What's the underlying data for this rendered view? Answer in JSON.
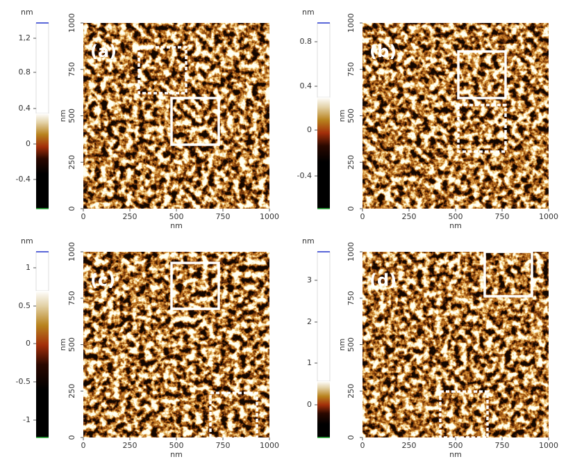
{
  "panels": [
    {
      "label": "(a)",
      "colorbar": {
        "unit": "nm",
        "ticks": [
          "1,2",
          "0.8",
          "0.4",
          "0",
          "-0.4"
        ]
      },
      "x_axis": {
        "label": "nm",
        "ticks": [
          "0",
          "250",
          "500",
          "750",
          "1000"
        ]
      },
      "y_axis": {
        "label": "nm",
        "ticks": [
          "0",
          "250",
          "500",
          "750",
          "1000"
        ]
      }
    },
    {
      "label": "(b)",
      "colorbar": {
        "unit": "nm",
        "ticks": [
          "0.8",
          "0.4",
          "0",
          "-0.4"
        ]
      },
      "x_axis": {
        "label": "nm",
        "ticks": [
          "0",
          "250",
          "500",
          "750",
          "1000"
        ]
      },
      "y_axis": {
        "label": "nm",
        "ticks": [
          "0",
          "250",
          "500",
          "750",
          "1000"
        ]
      }
    },
    {
      "label": "(c)",
      "colorbar": {
        "unit": "nm",
        "ticks": [
          "1",
          "0.5",
          "0",
          "-0.5",
          "-1"
        ]
      },
      "x_axis": {
        "label": "nm",
        "ticks": [
          "0",
          "250",
          "500",
          "750",
          "1000"
        ]
      },
      "y_axis": {
        "label": "nm",
        "ticks": [
          "0",
          "250",
          "500",
          "750",
          "1000"
        ]
      }
    },
    {
      "label": "(d)",
      "colorbar": {
        "unit": "nm",
        "ticks": [
          "3",
          "2",
          "1",
          "0"
        ]
      },
      "x_axis": {
        "label": "nm",
        "ticks": [
          "0",
          "250",
          "500",
          "750",
          "1000"
        ]
      },
      "y_axis": {
        "label": "nm",
        "ticks": [
          "0",
          "250",
          "500",
          "750",
          "1000"
        ]
      }
    }
  ]
}
